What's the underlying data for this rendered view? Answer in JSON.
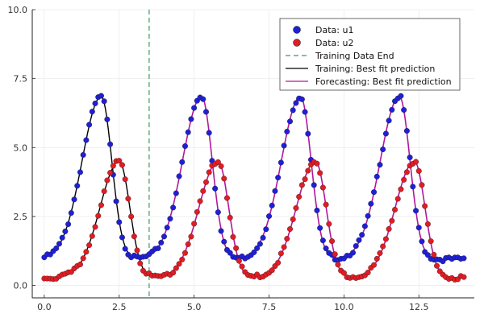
{
  "chart_data": {
    "type": "scatter",
    "title": "",
    "xlabel": "",
    "ylabel": "",
    "xlim": [
      -0.4,
      14.35
    ],
    "ylim": [
      -0.45,
      10.0
    ],
    "grid": true,
    "legend_position": "top-right",
    "x_ticks": [
      0.0,
      2.5,
      5.0,
      7.5,
      10.0,
      12.5
    ],
    "x_tick_labels": [
      "0.0",
      "2.5",
      "5.0",
      "7.5",
      "10.0",
      "12.5"
    ],
    "y_ticks": [
      0.0,
      2.5,
      5.0,
      7.5,
      10.0
    ],
    "y_tick_labels": [
      "0.0",
      "2.5",
      "5.0",
      "7.5",
      "10.0"
    ],
    "training_end_x": 3.5,
    "x_range": [
      0,
      14
    ],
    "sample_interval": 0.1,
    "series": [
      {
        "name": "Data: u1",
        "kind": "scatter",
        "color": "#1f1fd6",
        "peaks_x": [
          1.9,
          5.25,
          8.55,
          11.85
        ],
        "peak_value": 6.85,
        "trough_value": 0.95
      },
      {
        "name": "Data: u2",
        "kind": "scatter",
        "color": "#e01c24",
        "peaks_x": [
          2.5,
          5.8,
          9.05,
          12.35
        ],
        "peak_value": 4.5,
        "trough_value": 0.28
      },
      {
        "name": "Training Data End",
        "kind": "vline",
        "color": "#3a9a5a"
      },
      {
        "name": "Training: Best fit prediction",
        "kind": "line",
        "color": "#000000",
        "x_range": [
          0,
          3.5
        ]
      },
      {
        "name": "Forecasting: Best fit prediction",
        "kind": "line",
        "color": "#b0179c",
        "x_range": [
          3.5,
          14
        ]
      }
    ]
  }
}
